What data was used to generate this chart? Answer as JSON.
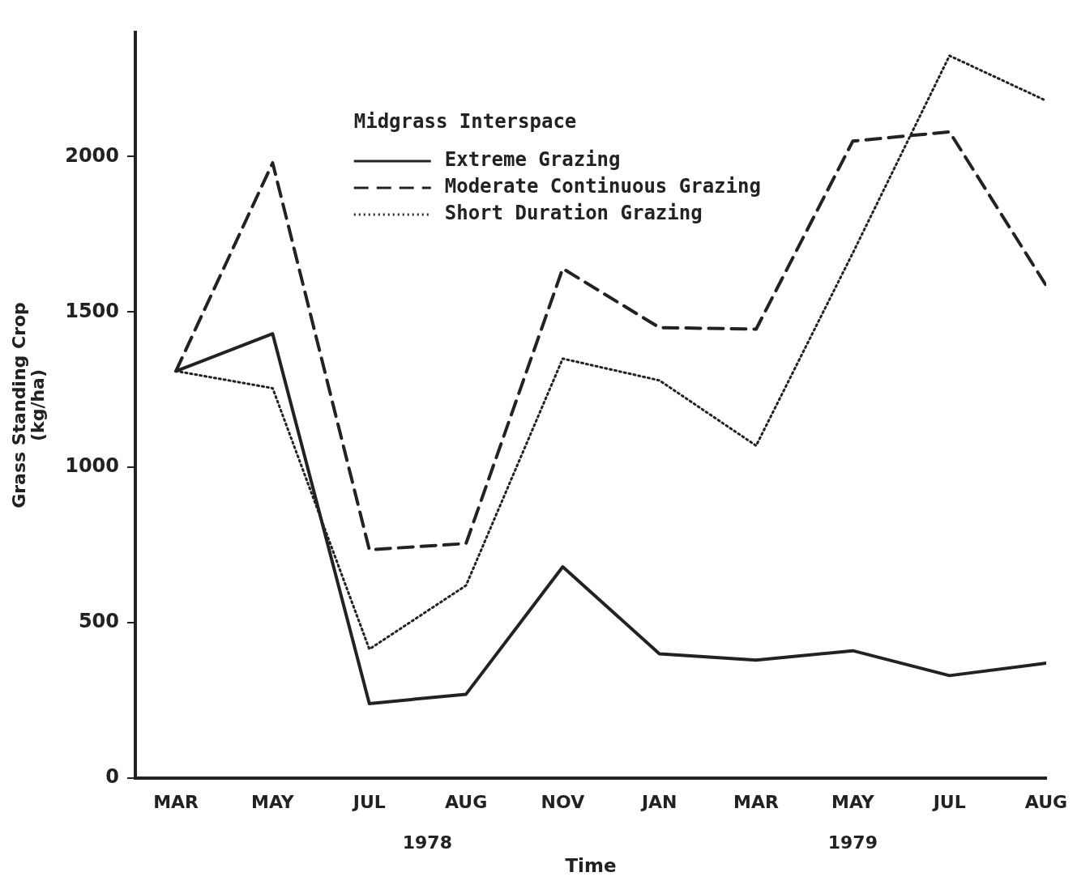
{
  "chart_data": {
    "type": "line",
    "xlabel": "Time",
    "ylabel": "Grass Standing Crop\n(kg/ha)",
    "legend_title": "Midgrass Interspace",
    "legend": "top",
    "grid": false,
    "marker": "none",
    "categories": [
      "MAR",
      "MAY",
      "JUL",
      "AUG",
      "NOV",
      "JAN",
      "MAR",
      "MAY",
      "JUL",
      "AUG"
    ],
    "ylim": [
      0,
      2400
    ],
    "yticks": [
      0,
      500,
      1000,
      1500,
      2000
    ],
    "annotations": [
      "1978",
      "1979"
    ],
    "series": [
      {
        "name": "Extreme Grazing",
        "color": "#222222",
        "line_style": "solid",
        "values": [
          1310,
          1430,
          240,
          270,
          680,
          400,
          380,
          410,
          330,
          370
        ]
      },
      {
        "name": "Moderate Continuous Grazing",
        "color": "#222222",
        "line_style": "dashed",
        "values": [
          1310,
          1980,
          735,
          755,
          1640,
          1450,
          1445,
          2050,
          2080,
          1585
        ]
      },
      {
        "name": "Short Duration Grazing",
        "color": "#222222",
        "line_style": "dotted",
        "values": [
          1310,
          1255,
          415,
          620,
          1350,
          1280,
          1070,
          1690,
          2325,
          2180
        ]
      }
    ]
  }
}
